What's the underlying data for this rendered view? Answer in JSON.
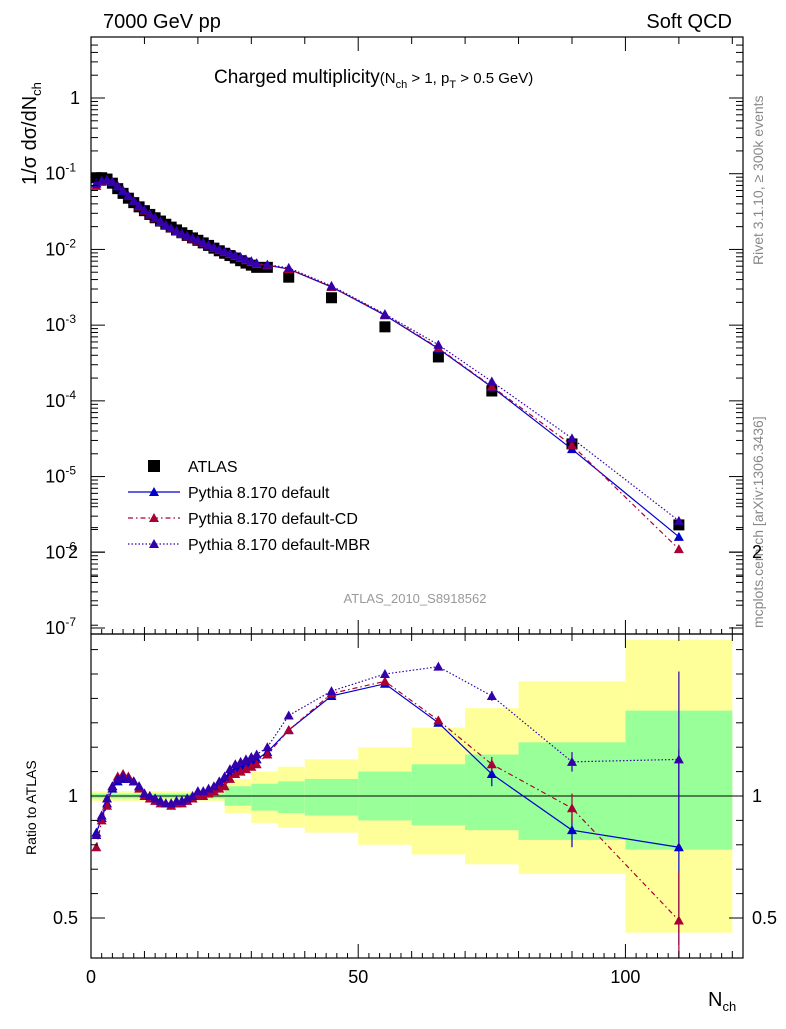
{
  "header": {
    "left": "7000 GeV pp",
    "right": "Soft QCD"
  },
  "side": {
    "rivet": "Rivet 3.1.10, ≥ 300k events",
    "source": "mcplots.cern.ch [arXiv:1306.3436]"
  },
  "chart_data": [
    {
      "type": "scatter",
      "panel": "main",
      "title_main": "Charged multiplicity",
      "title_cuts": "(N_ch > 1, p_T > 0.5 GeV)",
      "watermark": "ATLAS_2010_S8918562",
      "ylabel": "1/σ dσ/dN_ch",
      "xlim": [
        0,
        122
      ],
      "ylim": [
        1e-07,
        5
      ],
      "yscale": "log",
      "yticks": [
        "10^-7",
        "10^-6",
        "10^-5",
        "10^-4",
        "10^-3",
        "10^-2",
        "10^-1",
        "1"
      ],
      "legend_position": "lower-left",
      "series": [
        {
          "name": "ATLAS",
          "color": "#000000",
          "marker": "square",
          "x": [
            1,
            2,
            3,
            4,
            5,
            6,
            7,
            8,
            9,
            10,
            11,
            12,
            13,
            14,
            15,
            16,
            17,
            18,
            19,
            20,
            21,
            22,
            23,
            24,
            25,
            26,
            27,
            28,
            29,
            30,
            31,
            33,
            37,
            45,
            55,
            65,
            75,
            90,
            110
          ],
          "y": [
            0.0885,
            0.0885,
            0.085,
            0.075,
            0.0635,
            0.055,
            0.0475,
            0.0415,
            0.0365,
            0.0325,
            0.029,
            0.0262,
            0.0237,
            0.0215,
            0.0197,
            0.0181,
            0.0166,
            0.0153,
            0.0142,
            0.0132,
            0.0122,
            0.0113,
            0.0104,
            0.0096,
            0.0089,
            0.0083,
            0.0077,
            0.0071,
            0.0066,
            0.0062,
            0.0058,
            0.0058,
            0.0043,
            0.0023,
            0.00095,
            0.00038,
            0.000135,
            2.7e-05,
            2.3e-06
          ]
        },
        {
          "name": "Pythia 8.170 default",
          "color": "#0000cc",
          "marker": "triangle",
          "dash": "",
          "x": [
            1,
            2,
            3,
            4,
            5,
            6,
            7,
            8,
            9,
            10,
            11,
            12,
            13,
            14,
            15,
            16,
            17,
            18,
            19,
            20,
            21,
            22,
            23,
            24,
            25,
            26,
            27,
            28,
            29,
            30,
            31,
            33,
            37,
            45,
            55,
            65,
            75,
            90,
            110
          ],
          "y": [
            0.075,
            0.08,
            0.082,
            0.077,
            0.068,
            0.059,
            0.051,
            0.044,
            0.038,
            0.0332,
            0.0293,
            0.0262,
            0.0235,
            0.0211,
            0.0191,
            0.0174,
            0.0161,
            0.015,
            0.014,
            0.0131,
            0.0122,
            0.0114,
            0.0106,
            0.0099,
            0.0093,
            0.0088,
            0.0083,
            0.0078,
            0.0073,
            0.0069,
            0.0065,
            0.0062,
            0.0055,
            0.0032,
            0.00135,
            0.00049,
            0.000152,
            2.3e-05,
            1.6e-06
          ]
        },
        {
          "name": "Pythia 8.170 default-CD",
          "color": "#aa0033",
          "marker": "triangle",
          "dash": "5,3,1.5,3",
          "x": [
            1,
            2,
            3,
            4,
            5,
            6,
            7,
            8,
            9,
            10,
            11,
            12,
            13,
            14,
            15,
            16,
            17,
            18,
            19,
            20,
            21,
            22,
            23,
            24,
            25,
            26,
            27,
            28,
            29,
            30,
            31,
            33,
            37,
            45,
            55,
            65,
            75,
            90,
            110
          ],
          "y": [
            0.069,
            0.078,
            0.082,
            0.078,
            0.069,
            0.06,
            0.051,
            0.044,
            0.037,
            0.0325,
            0.0288,
            0.0258,
            0.023,
            0.0208,
            0.0189,
            0.0172,
            0.016,
            0.0149,
            0.0139,
            0.013,
            0.0121,
            0.0113,
            0.0105,
            0.0098,
            0.0092,
            0.0087,
            0.0082,
            0.0077,
            0.0072,
            0.0068,
            0.0064,
            0.0062,
            0.0055,
            0.0032,
            0.00138,
            0.0005,
            0.000155,
            2.6e-05,
            1.1e-06
          ]
        },
        {
          "name": "Pythia 8.170 default-MBR",
          "color": "#3300aa",
          "marker": "triangle",
          "dash": "1.5,2",
          "x": [
            1,
            2,
            3,
            4,
            5,
            6,
            7,
            8,
            9,
            10,
            11,
            12,
            13,
            14,
            15,
            16,
            17,
            18,
            19,
            20,
            21,
            22,
            23,
            24,
            25,
            26,
            27,
            28,
            29,
            30,
            31,
            33,
            37,
            45,
            55,
            65,
            75,
            90,
            110
          ],
          "y": [
            0.074,
            0.081,
            0.084,
            0.078,
            0.069,
            0.06,
            0.051,
            0.044,
            0.038,
            0.033,
            0.0292,
            0.0261,
            0.0234,
            0.021,
            0.0191,
            0.0175,
            0.0162,
            0.0151,
            0.0141,
            0.0132,
            0.0123,
            0.0115,
            0.0107,
            0.01,
            0.0094,
            0.0089,
            0.0084,
            0.0079,
            0.0074,
            0.007,
            0.0066,
            0.0063,
            0.0057,
            0.0033,
            0.0014,
            0.00055,
            0.00018,
            3.2e-05,
            2.6e-06
          ]
        }
      ]
    },
    {
      "type": "scatter",
      "panel": "ratio",
      "ylabel": "Ratio to ATLAS",
      "xlabel": "N_ch",
      "xlim": [
        0,
        122
      ],
      "ylim": [
        0.4,
        2.35
      ],
      "xticks": [
        0,
        50,
        100
      ],
      "yticks": [
        0.5,
        1,
        2
      ],
      "bands": {
        "edges": [
          0,
          25,
          30,
          35,
          40,
          50,
          60,
          70,
          80,
          100,
          120
        ],
        "inner_color": "#99ff99",
        "outer_color": "#ffff99",
        "inner_lo": [
          0.99,
          0.96,
          0.94,
          0.93,
          0.92,
          0.9,
          0.88,
          0.86,
          0.82,
          0.78
        ],
        "inner_hi": [
          1.01,
          1.04,
          1.05,
          1.06,
          1.07,
          1.1,
          1.13,
          1.17,
          1.22,
          1.35
        ],
        "outer_lo": [
          0.98,
          0.93,
          0.89,
          0.87,
          0.85,
          0.8,
          0.76,
          0.72,
          0.68,
          0.44
        ],
        "outer_hi": [
          1.02,
          1.07,
          1.1,
          1.12,
          1.15,
          1.2,
          1.28,
          1.36,
          1.47,
          1.64
        ]
      },
      "series": [
        {
          "name": "Pythia 8.170 default",
          "x": [
            1,
            2,
            3,
            4,
            5,
            6,
            7,
            8,
            9,
            10,
            11,
            12,
            13,
            14,
            15,
            16,
            17,
            18,
            19,
            20,
            21,
            22,
            23,
            24,
            25,
            26,
            27,
            28,
            29,
            30,
            31,
            33,
            37,
            45,
            55,
            65,
            75,
            90,
            110
          ],
          "y": [
            0.85,
            0.91,
            0.97,
            1.03,
            1.06,
            1.07,
            1.07,
            1.06,
            1.04,
            1.01,
            1.0,
            0.99,
            0.98,
            0.97,
            0.97,
            0.97,
            0.98,
            0.99,
            0.99,
            1.01,
            1.01,
            1.02,
            1.03,
            1.05,
            1.07,
            1.09,
            1.11,
            1.12,
            1.13,
            1.14,
            1.15,
            1.18,
            1.27,
            1.41,
            1.46,
            1.3,
            1.09,
            0.86,
            0.79
          ],
          "err": [
            0,
            0,
            0,
            0,
            0,
            0,
            0,
            0,
            0,
            0,
            0,
            0,
            0,
            0,
            0,
            0,
            0,
            0,
            0,
            0,
            0,
            0,
            0,
            0,
            0,
            0,
            0,
            0,
            0,
            0,
            0,
            0,
            0,
            0,
            0,
            0,
            0.05,
            0.07,
            0.4
          ]
        },
        {
          "name": "Pythia 8.170 default-CD",
          "x": [
            1,
            2,
            3,
            4,
            5,
            6,
            7,
            8,
            9,
            10,
            11,
            12,
            13,
            14,
            15,
            16,
            17,
            18,
            19,
            20,
            21,
            22,
            23,
            24,
            25,
            26,
            27,
            28,
            29,
            30,
            31,
            33,
            37,
            45,
            55,
            65,
            75,
            90,
            110
          ],
          "y": [
            0.79,
            0.9,
            0.96,
            1.04,
            1.08,
            1.09,
            1.08,
            1.06,
            1.03,
            1.0,
            0.99,
            0.98,
            0.97,
            0.97,
            0.96,
            0.97,
            0.97,
            0.98,
            0.99,
            1.0,
            1.0,
            1.01,
            1.02,
            1.03,
            1.04,
            1.07,
            1.09,
            1.1,
            1.11,
            1.12,
            1.13,
            1.17,
            1.27,
            1.42,
            1.47,
            1.31,
            1.13,
            0.95,
            0.49
          ],
          "err": [
            0,
            0,
            0,
            0,
            0,
            0,
            0,
            0,
            0,
            0,
            0,
            0,
            0,
            0,
            0,
            0,
            0,
            0,
            0,
            0,
            0,
            0,
            0,
            0,
            0,
            0,
            0,
            0,
            0,
            0,
            0,
            0,
            0,
            0,
            0,
            0,
            0.03,
            0.06,
            0.2
          ]
        },
        {
          "name": "Pythia 8.170 default-MBR",
          "x": [
            1,
            2,
            3,
            4,
            5,
            6,
            7,
            8,
            9,
            10,
            11,
            12,
            13,
            14,
            15,
            16,
            17,
            18,
            19,
            20,
            21,
            22,
            23,
            24,
            25,
            26,
            27,
            28,
            29,
            30,
            31,
            33,
            37,
            45,
            55,
            65,
            75,
            90,
            110
          ],
          "y": [
            0.84,
            0.92,
            0.99,
            1.04,
            1.07,
            1.08,
            1.07,
            1.06,
            1.04,
            1.01,
            1.0,
            0.99,
            0.98,
            0.97,
            0.97,
            0.98,
            0.98,
            0.99,
            1.0,
            1.02,
            1.02,
            1.03,
            1.04,
            1.06,
            1.08,
            1.11,
            1.13,
            1.14,
            1.15,
            1.16,
            1.17,
            1.2,
            1.33,
            1.43,
            1.5,
            1.53,
            1.41,
            1.14,
            1.15
          ],
          "err": [
            0,
            0,
            0,
            0,
            0,
            0,
            0,
            0,
            0,
            0,
            0,
            0,
            0,
            0,
            0,
            0,
            0,
            0,
            0,
            0,
            0,
            0,
            0,
            0,
            0,
            0,
            0,
            0,
            0,
            0,
            0,
            0,
            0,
            0,
            0,
            0,
            0.02,
            0.04,
            0.36
          ]
        }
      ]
    }
  ]
}
